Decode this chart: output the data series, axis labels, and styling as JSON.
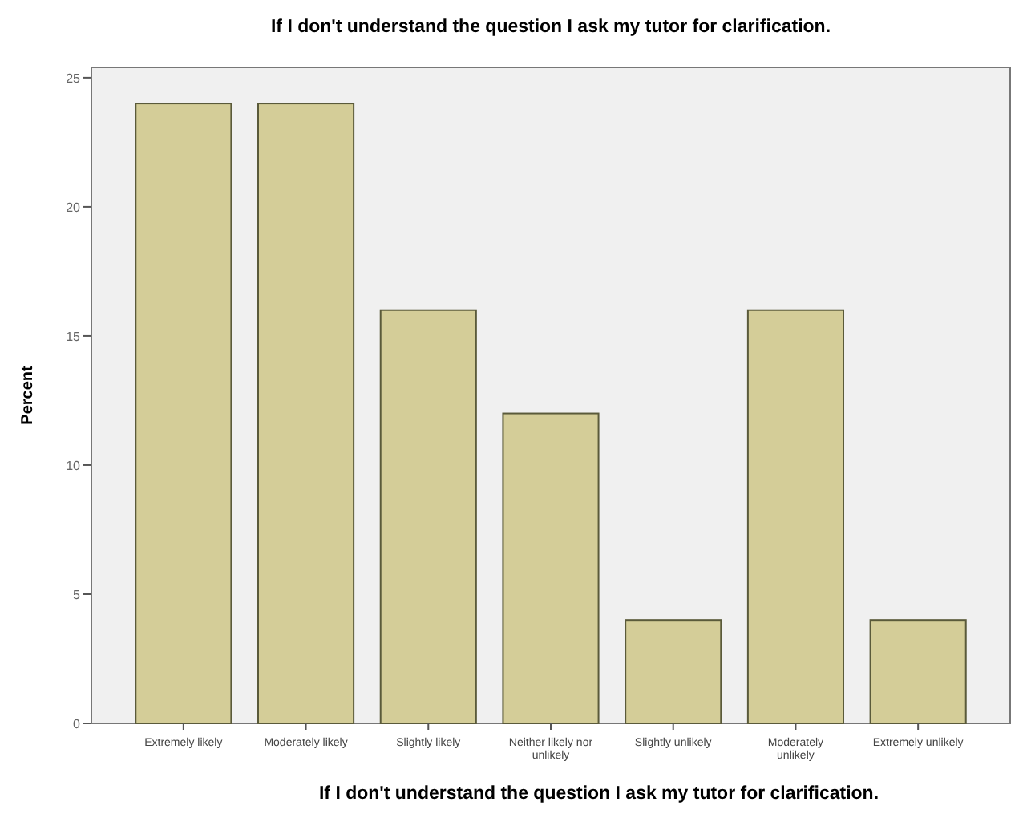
{
  "chart_data": {
    "type": "bar",
    "title": "If I don't understand the question I ask my tutor for clarification.",
    "xlabel": "If I don't understand the question I ask my tutor for clarification.",
    "ylabel": "Percent",
    "categories": [
      "Extremely likely",
      "Moderately likely",
      "Slightly likely",
      "Neither likely nor unlikely",
      "Slightly unlikely",
      "Moderately unlikely",
      "Extremely unlikely"
    ],
    "values": [
      24,
      24,
      16,
      12,
      4,
      16,
      4
    ],
    "color": "#d4cd98",
    "ylim": [
      0,
      25.4
    ],
    "yticks": [
      0,
      5,
      10,
      15,
      20,
      25
    ],
    "grid": false
  }
}
